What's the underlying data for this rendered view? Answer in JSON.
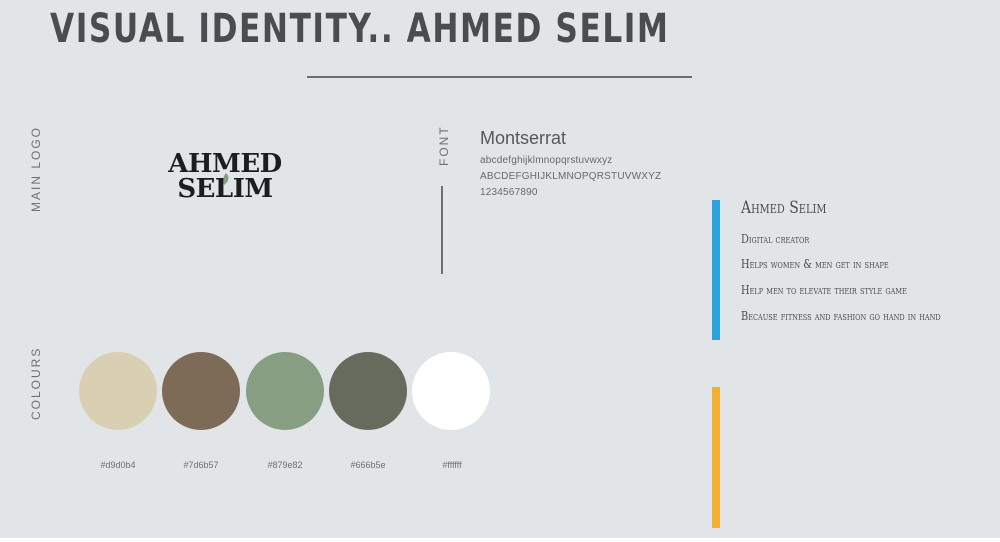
{
  "header": {
    "title": "VISUAL IDENTITY.. AHMED SELIM"
  },
  "labels": {
    "main_logo": "MAIN LOGO",
    "font": "FONT",
    "colours": "COLOURS"
  },
  "logo": {
    "line1": "AHMED",
    "line2": "SELIM",
    "leaf_color": "#879e82"
  },
  "font": {
    "name": "Montserrat",
    "lowercase": "abcdefghijklmnopqrstuvwxyz",
    "uppercase": "ABCDEFGHIJKLMNOPQRSTUVWXYZ",
    "digits": "1234567890"
  },
  "colours": [
    {
      "hex": "#d9d0b4",
      "label": "#d9d0b4"
    },
    {
      "hex": "#7d6b57",
      "label": "#7d6b57"
    },
    {
      "hex": "#879e82",
      "label": "#879e82"
    },
    {
      "hex": "#666b5e",
      "label": "#666b5e"
    },
    {
      "hex": "#ffffff",
      "label": "#ffffff"
    }
  ],
  "bio": {
    "name": "Ahmed Selim",
    "lines": [
      "Digital creator",
      "Helps women & men get in shape",
      "Help men to elevate their style game",
      "Because fitness and fashion go hand in hand"
    ]
  },
  "accents": {
    "blue": "#2aa3dc",
    "orange": "#f3b030"
  }
}
